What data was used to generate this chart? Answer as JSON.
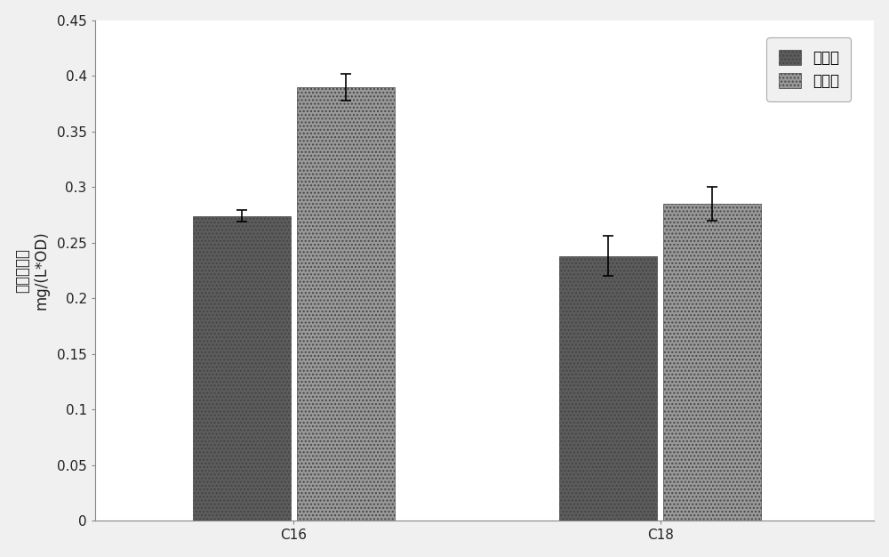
{
  "categories": [
    "C16",
    "C18"
  ],
  "series": [
    "野生型",
    "实验组"
  ],
  "values": [
    [
      0.274,
      0.238
    ],
    [
      0.39,
      0.285
    ]
  ],
  "errors": [
    [
      0.005,
      0.018
    ],
    [
      0.012,
      0.015
    ]
  ],
  "bar_colors_dark": [
    "#5a5a5a",
    "#5a5a5a"
  ],
  "bar_colors_light": [
    "#aaaaaa",
    "#aaaaaa"
  ],
  "ylabel_line1": "脂肪酸含量",
  "ylabel_line2": "mg/(L*OD)",
  "ylim": [
    0,
    0.45
  ],
  "yticks": [
    0,
    0.05,
    0.1,
    0.15,
    0.2,
    0.25,
    0.3,
    0.35,
    0.4,
    0.45
  ],
  "ytick_labels": [
    "0",
    "0.05",
    "0.1",
    "0.15",
    "0.2",
    "0.25",
    "0.3",
    "0.35",
    "0.4",
    "0.45"
  ],
  "bar_width": 0.32,
  "group_centers": [
    1.0,
    2.2
  ],
  "xlim": [
    0.35,
    2.9
  ],
  "legend_labels": [
    "野生型",
    "实验组"
  ],
  "background_color": "#ffffff",
  "plot_bg_color": "#f5f5f5",
  "font_size": 12,
  "tick_font_size": 11
}
